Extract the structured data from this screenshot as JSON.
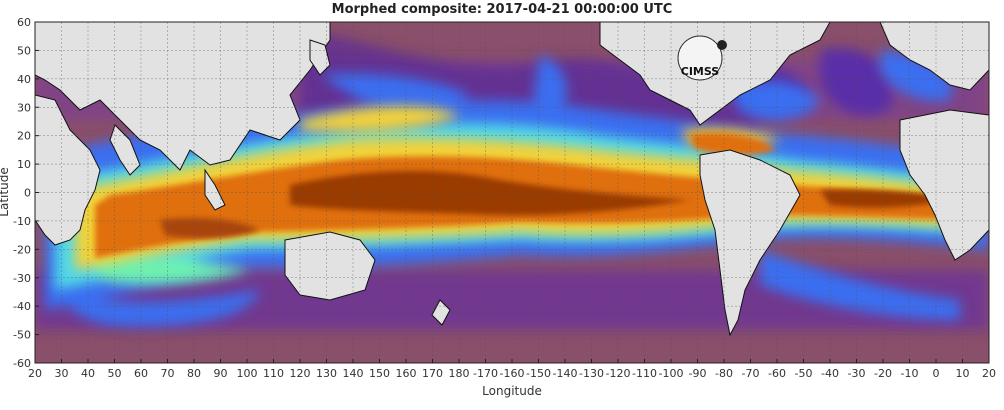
{
  "title": "Morphed composite: 2017-04-21 00:00:00 UTC",
  "xlabel": "Longitude",
  "ylabel": "Latitude",
  "x_ticks": [
    "20",
    "30",
    "40",
    "50",
    "60",
    "70",
    "80",
    "90",
    "100",
    "110",
    "120",
    "130",
    "140",
    "150",
    "160",
    "170",
    "180",
    "-170",
    "-160",
    "-150",
    "-140",
    "-130",
    "-120",
    "-110",
    "-100",
    "-90",
    "-80",
    "-70",
    "-60",
    "-50",
    "-40",
    "-30",
    "-20",
    "-10",
    "0",
    "10",
    "20"
  ],
  "y_ticks": [
    "60",
    "50",
    "40",
    "30",
    "20",
    "10",
    "0",
    "-10",
    "-20",
    "-30",
    "-40",
    "-50",
    "-60"
  ],
  "logo_text": "CIMSS",
  "colors": {
    "land": "#e2e2e2",
    "dry": "#8a4f6a",
    "purple": "#6a2fa0",
    "blue": "#3a6ef0",
    "cyan": "#4fd8e8",
    "yellow": "#f2d23a",
    "orange": "#e07010",
    "deep": "#9a3a05",
    "grid": "#555555"
  }
}
